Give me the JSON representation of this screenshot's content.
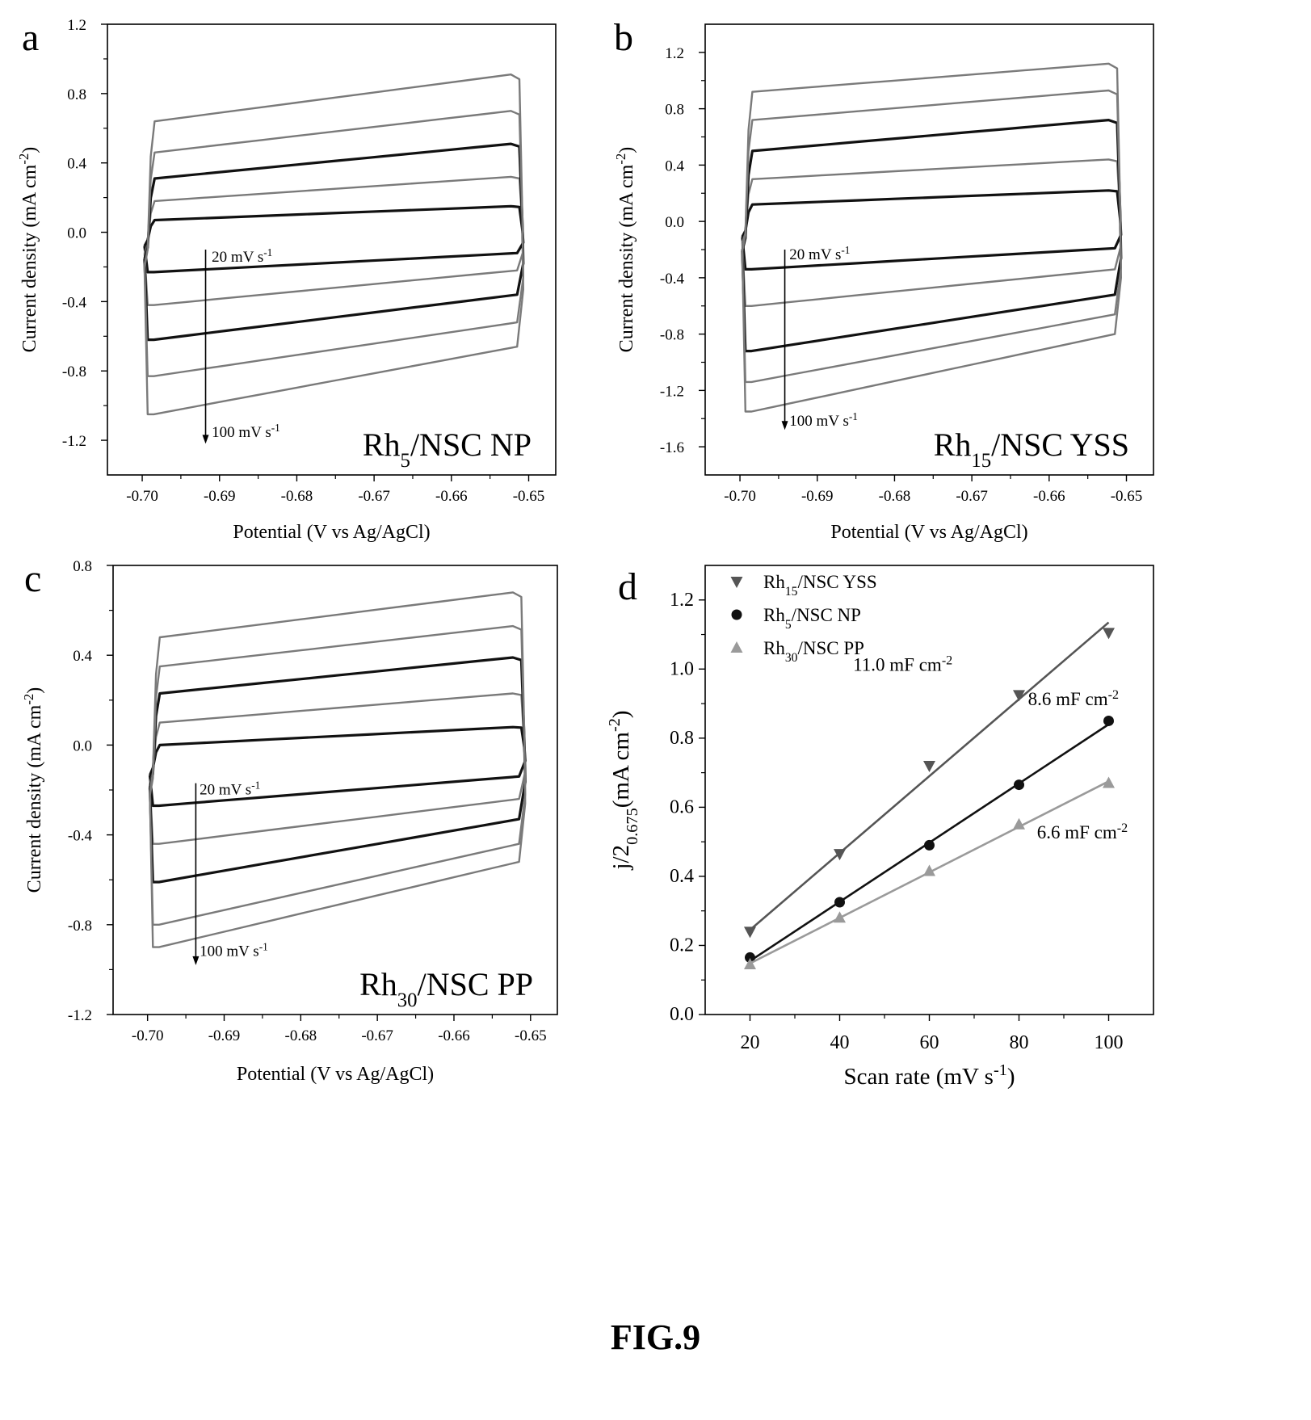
{
  "figure_caption": "FIG.9",
  "colors": {
    "dark": "#111111",
    "mid": "#555555",
    "gray": "#7a7a7a",
    "light": "#9a9a9a"
  },
  "chart_data": [
    {
      "panel": "a",
      "type": "line",
      "sample_label": {
        "prefix": "Rh",
        "sub": "5",
        "suffix": "/NSC NP"
      },
      "xlabel": "Potential (V vs Ag/AgCl)",
      "ylabel": {
        "text": "Current density (mA cm",
        "sup": "-2",
        "close": ")"
      },
      "xlim": [
        -0.7045,
        -0.6465
      ],
      "ylim": [
        -1.4,
        1.2
      ],
      "xticks": [
        -0.7,
        -0.69,
        -0.68,
        -0.67,
        -0.66,
        -0.65
      ],
      "xtick_labels": [
        "-0.70",
        "-0.69",
        "-0.68",
        "-0.67",
        "-0.66",
        "-0.65"
      ],
      "yticks": [
        -1.2,
        -0.8,
        -0.4,
        0.0,
        0.4,
        0.8,
        1.2
      ],
      "ytick_labels": [
        "-1.2",
        "-0.8",
        "-0.4",
        "0.0",
        "0.4",
        "0.8",
        "1.2"
      ],
      "arrow": {
        "x": -0.6918,
        "y_from": -0.1,
        "y_to": -1.22
      },
      "rate_start": {
        "text": "20 mV s",
        "sup": "-1",
        "x": -0.691,
        "y": -0.17
      },
      "rate_end": {
        "text": "100 mV s",
        "sup": "-1",
        "x": -0.691,
        "y": -1.18
      },
      "series": [
        {
          "scan_rate": 20,
          "color": "dark",
          "width": 3.2,
          "anodic": [
            0.07,
            0.15
          ],
          "cathodic": [
            -0.23,
            -0.12
          ]
        },
        {
          "scan_rate": 40,
          "color": "gray",
          "width": 2.4,
          "anodic": [
            0.18,
            0.32
          ],
          "cathodic": [
            -0.42,
            -0.22
          ]
        },
        {
          "scan_rate": 60,
          "color": "dark",
          "width": 3.2,
          "anodic": [
            0.31,
            0.51
          ],
          "cathodic": [
            -0.62,
            -0.36
          ]
        },
        {
          "scan_rate": 80,
          "color": "gray",
          "width": 2.4,
          "anodic": [
            0.46,
            0.7
          ],
          "cathodic": [
            -0.83,
            -0.52
          ]
        },
        {
          "scan_rate": 100,
          "color": "gray",
          "width": 2.4,
          "anodic": [
            0.64,
            0.91
          ],
          "cathodic": [
            -1.05,
            -0.66
          ]
        }
      ]
    },
    {
      "panel": "b",
      "type": "line",
      "sample_label": {
        "prefix": "Rh",
        "sub": "15",
        "suffix": "/NSC YSS"
      },
      "xlabel": "Potential (V vs Ag/AgCl)",
      "ylabel": {
        "text": "Current density (mA cm",
        "sup": "-2",
        "close": ")"
      },
      "xlim": [
        -0.7045,
        -0.6465
      ],
      "ylim": [
        -1.8,
        1.4
      ],
      "xticks": [
        -0.7,
        -0.69,
        -0.68,
        -0.67,
        -0.66,
        -0.65
      ],
      "xtick_labels": [
        "-0.70",
        "-0.69",
        "-0.68",
        "-0.67",
        "-0.66",
        "-0.65"
      ],
      "yticks": [
        -1.6,
        -1.2,
        -0.8,
        -0.4,
        0.0,
        0.4,
        0.8,
        1.2
      ],
      "ytick_labels": [
        "-1.6",
        "-1.2",
        "-0.8",
        "-0.4",
        "0.0",
        "0.4",
        "0.8",
        "1.2"
      ],
      "arrow": {
        "x": -0.6942,
        "y_from": -0.2,
        "y_to": -1.48
      },
      "rate_start": {
        "text": "20 mV s",
        "sup": "-1",
        "x": -0.6936,
        "y": -0.27
      },
      "rate_end": {
        "text": "100 mV s",
        "sup": "-1",
        "x": -0.6936,
        "y": -1.45
      },
      "series": [
        {
          "scan_rate": 20,
          "color": "dark",
          "width": 3.2,
          "anodic": [
            0.12,
            0.22
          ],
          "cathodic": [
            -0.34,
            -0.19
          ]
        },
        {
          "scan_rate": 40,
          "color": "gray",
          "width": 2.4,
          "anodic": [
            0.3,
            0.44
          ],
          "cathodic": [
            -0.6,
            -0.34
          ]
        },
        {
          "scan_rate": 60,
          "color": "dark",
          "width": 3.2,
          "anodic": [
            0.5,
            0.72
          ],
          "cathodic": [
            -0.92,
            -0.52
          ]
        },
        {
          "scan_rate": 80,
          "color": "gray",
          "width": 2.4,
          "anodic": [
            0.72,
            0.93
          ],
          "cathodic": [
            -1.14,
            -0.66
          ]
        },
        {
          "scan_rate": 100,
          "color": "gray",
          "width": 2.4,
          "anodic": [
            0.92,
            1.12
          ],
          "cathodic": [
            -1.35,
            -0.8
          ]
        }
      ]
    },
    {
      "panel": "c",
      "type": "line",
      "sample_label": {
        "prefix": "Rh",
        "sub": "30",
        "suffix": "/NSC PP"
      },
      "xlabel": "Potential (V vs Ag/AgCl)",
      "ylabel": {
        "text": "Current density (mA cm",
        "sup": "-2",
        "close": ")"
      },
      "xlim": [
        -0.7045,
        -0.6465
      ],
      "ylim": [
        -1.2,
        0.8
      ],
      "xticks": [
        -0.7,
        -0.69,
        -0.68,
        -0.67,
        -0.66,
        -0.65
      ],
      "xtick_labels": [
        "-0.70",
        "-0.69",
        "-0.68",
        "-0.67",
        "-0.66",
        "-0.65"
      ],
      "yticks": [
        -1.2,
        -0.8,
        -0.4,
        0.0,
        0.4,
        0.8
      ],
      "ytick_labels": [
        "-1.2",
        "-0.8",
        "-0.4",
        "0.0",
        "0.4",
        "0.8"
      ],
      "arrow": {
        "x": -0.6937,
        "y_from": -0.17,
        "y_to": -0.98
      },
      "rate_start": {
        "text": "20 mV s",
        "sup": "-1",
        "x": -0.6932,
        "y": -0.22
      },
      "rate_end": {
        "text": "100 mV s",
        "sup": "-1",
        "x": -0.6932,
        "y": -0.94
      },
      "series": [
        {
          "scan_rate": 20,
          "color": "dark",
          "width": 3.2,
          "anodic": [
            0.0,
            0.08
          ],
          "cathodic": [
            -0.27,
            -0.14
          ]
        },
        {
          "scan_rate": 40,
          "color": "gray",
          "width": 2.4,
          "anodic": [
            0.1,
            0.23
          ],
          "cathodic": [
            -0.44,
            -0.24
          ]
        },
        {
          "scan_rate": 60,
          "color": "dark",
          "width": 3.2,
          "anodic": [
            0.23,
            0.39
          ],
          "cathodic": [
            -0.61,
            -0.33
          ]
        },
        {
          "scan_rate": 80,
          "color": "gray",
          "width": 2.4,
          "anodic": [
            0.35,
            0.53
          ],
          "cathodic": [
            -0.8,
            -0.44
          ]
        },
        {
          "scan_rate": 100,
          "color": "gray",
          "width": 2.4,
          "anodic": [
            0.48,
            0.68
          ],
          "cathodic": [
            -0.9,
            -0.52
          ]
        }
      ]
    },
    {
      "panel": "d",
      "type": "scatter",
      "xlabel": {
        "text": "Scan rate (mV s",
        "sup": "-1",
        "close": ")"
      },
      "ylabel": {
        "pre": "j/2",
        "sub": "0.675",
        "text": "(mA cm",
        "sup": "-2",
        "close": ")"
      },
      "xlim": [
        10,
        110
      ],
      "ylim": [
        0.0,
        1.3
      ],
      "xticks": [
        20,
        40,
        60,
        80,
        100
      ],
      "xtick_labels": [
        "20",
        "40",
        "60",
        "80",
        "100"
      ],
      "yticks": [
        0.0,
        0.2,
        0.4,
        0.6,
        0.8,
        1.0,
        1.2
      ],
      "ytick_labels": [
        "0.0",
        "0.2",
        "0.4",
        "0.6",
        "0.8",
        "1.0",
        "1.2"
      ],
      "legend_placement": "top-left",
      "series": [
        {
          "name_prefix": "Rh",
          "name_sub": "15",
          "name_suffix": "/NSC YSS",
          "marker": "triangle-down",
          "color": "mid",
          "x": [
            20,
            40,
            60,
            80,
            100
          ],
          "y": [
            0.24,
            0.465,
            0.72,
            0.925,
            1.105
          ],
          "fit": [
            [
              20,
              0.245
            ],
            [
              100,
              1.135
            ]
          ],
          "slope_label": {
            "text": "11.0 mF cm",
            "sup": "-2",
            "x": 43,
            "y": 0.995
          }
        },
        {
          "name_prefix": "Rh",
          "name_sub": "5",
          "name_suffix": "/NSC NP",
          "marker": "circle",
          "color": "dark",
          "x": [
            20,
            40,
            60,
            80,
            100
          ],
          "y": [
            0.165,
            0.325,
            0.49,
            0.665,
            0.85
          ],
          "fit": [
            [
              20,
              0.155
            ],
            [
              100,
              0.84
            ]
          ],
          "slope_label": {
            "text": "8.6 mF cm",
            "sup": "-2",
            "x": 82,
            "y": 0.895
          }
        },
        {
          "name_prefix": "Rh",
          "name_sub": "30",
          "name_suffix": "/NSC PP",
          "marker": "triangle-up",
          "color": "light",
          "x": [
            20,
            40,
            60,
            80,
            100
          ],
          "y": [
            0.145,
            0.28,
            0.415,
            0.55,
            0.67
          ],
          "fit": [
            [
              20,
              0.148
            ],
            [
              100,
              0.675
            ]
          ],
          "slope_label": {
            "text": "6.6 mF cm",
            "sup": "-2",
            "x": 84,
            "y": 0.51
          }
        }
      ]
    }
  ]
}
